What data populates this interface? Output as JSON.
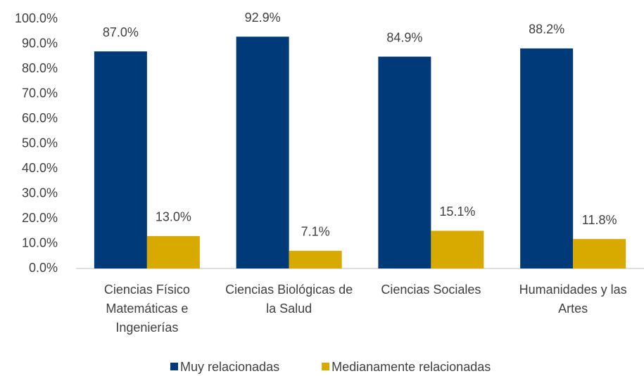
{
  "chart_data": {
    "type": "bar",
    "categories": [
      "Ciencias Físico Matemáticas e Ingenierías",
      "Ciencias Biológicas de la Salud",
      "Ciencias Sociales",
      "Humanidades y las Artes"
    ],
    "series": [
      {
        "name": "Muy relacionadas",
        "color": "#003a78",
        "values": [
          87.0,
          92.9,
          84.9,
          88.2
        ],
        "value_labels": [
          "87.0%",
          "92.9%",
          "84.9%",
          "88.2%"
        ]
      },
      {
        "name": "Medianamente relacionadas",
        "color": "#d8aa00",
        "values": [
          13.0,
          7.1,
          15.1,
          11.8
        ],
        "value_labels": [
          "13.0%",
          "7.1%",
          "15.1%",
          "11.8%"
        ]
      }
    ],
    "ylim": [
      0,
      100
    ],
    "yticks": [
      {
        "value": 0,
        "label": "0.0%"
      },
      {
        "value": 10,
        "label": "10.0%"
      },
      {
        "value": 20,
        "label": "20.0%"
      },
      {
        "value": 30,
        "label": "30.0%"
      },
      {
        "value": 40,
        "label": "40.0%"
      },
      {
        "value": 50,
        "label": "50.0%"
      },
      {
        "value": 60,
        "label": "60.0%"
      },
      {
        "value": 70,
        "label": "70.0%"
      },
      {
        "value": 80,
        "label": "80.0%"
      },
      {
        "value": 90,
        "label": "90.0%"
      },
      {
        "value": 100,
        "label": "100.0%"
      }
    ],
    "grid": false,
    "legend": "bottom"
  }
}
